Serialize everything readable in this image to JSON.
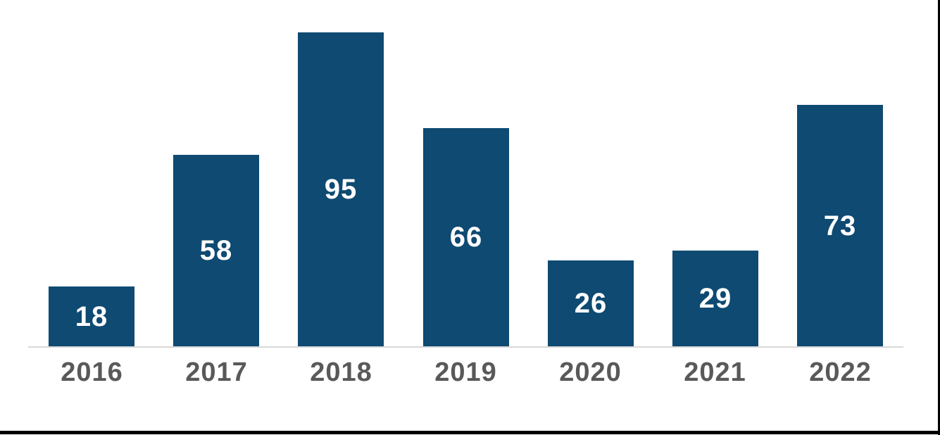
{
  "chart_data": {
    "type": "bar",
    "categories": [
      "2016",
      "2017",
      "2018",
      "2019",
      "2020",
      "2021",
      "2022"
    ],
    "values": [
      18,
      58,
      95,
      66,
      26,
      29,
      73
    ],
    "title": "",
    "xlabel": "",
    "ylabel": "",
    "ylim": [
      0,
      95
    ],
    "grid": false,
    "legend": false,
    "value_labels": "centered-inside-bars",
    "colors": {
      "bar_fill": "#0E4A72",
      "value_label": "#FFFFFF",
      "category_label": "#595959",
      "axis_line": "#D9D9D9",
      "frame_border": "#000000",
      "background": "#FFFFFF"
    }
  }
}
